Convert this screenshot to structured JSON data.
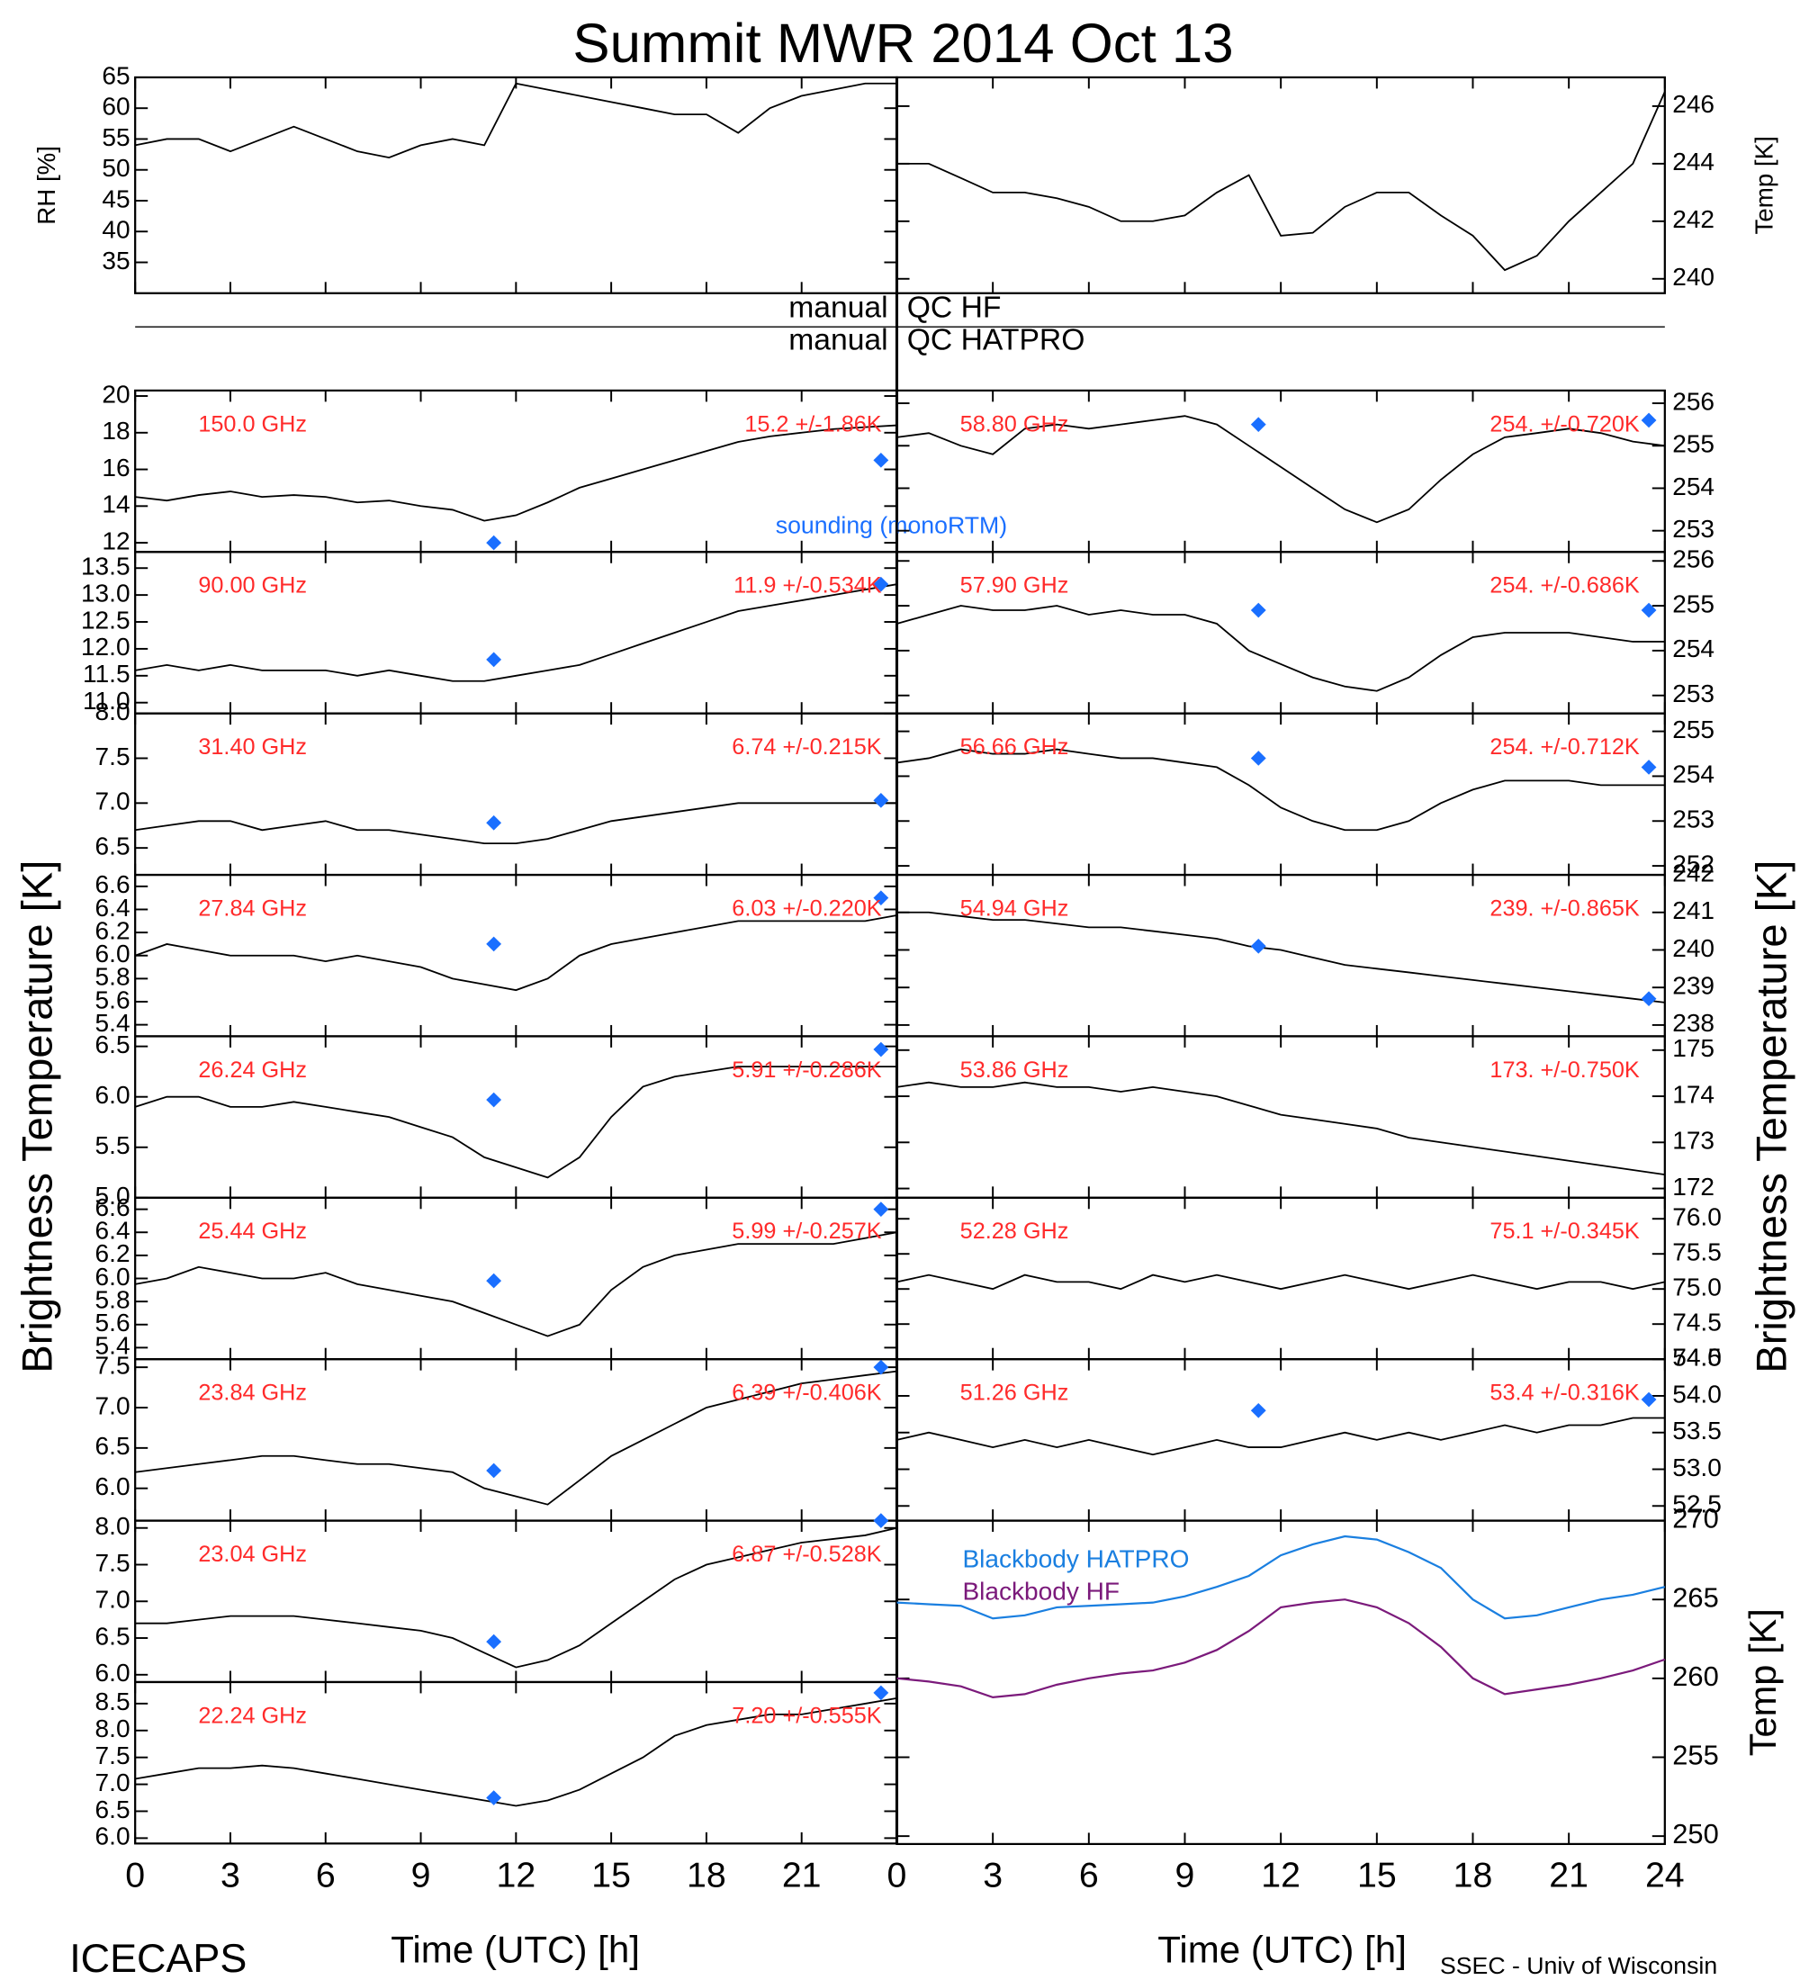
{
  "title": "Summit MWR 2014 Oct 13",
  "qc": [
    {
      "left": "manual",
      "right": "QC HF"
    },
    {
      "left": "manual",
      "right": "QC HATPRO"
    }
  ],
  "ylabel": "Brightness Temperature [K]",
  "sounding_label": "sounding (monoRTM)",
  "sounding_color": "#1a6fff",
  "label_color": "#ff2a2a",
  "footer_left": "ICECAPS",
  "footer_right": "SSEC - Univ of Wisconsin",
  "time_axis": {
    "xlabel": "Time (UTC) [h]",
    "xlim": [
      0,
      24
    ],
    "xticks": [
      0,
      3,
      6,
      9,
      12,
      15,
      18,
      21,
      24
    ],
    "x": [
      0,
      1,
      2,
      3,
      4,
      5,
      6,
      7,
      8,
      9,
      10,
      11,
      12,
      13,
      14,
      15,
      16,
      17,
      18,
      19,
      20,
      21,
      22,
      23,
      24
    ]
  },
  "chart_data": [
    {
      "type": "line",
      "ylabel": "RH [%]",
      "color": "#000000",
      "ylim": [
        30,
        65
      ],
      "yticks": [
        35,
        40,
        45,
        50,
        55,
        60,
        65
      ],
      "values": [
        54,
        55,
        55,
        53,
        55,
        57,
        55,
        53,
        52,
        54,
        55,
        54,
        64,
        63,
        62,
        61,
        60,
        59,
        59,
        56,
        60,
        62,
        63,
        64,
        64
      ]
    },
    {
      "type": "line",
      "ylabel": "Temp [K]",
      "color": "#000000",
      "ylim": [
        239.5,
        247
      ],
      "yticks": [
        240,
        242,
        244,
        246
      ],
      "values": [
        244,
        244,
        243.5,
        243,
        243,
        242.8,
        242.5,
        242,
        242,
        242.2,
        243,
        243.6,
        241.5,
        241.6,
        242.5,
        243,
        243,
        242.2,
        241.5,
        240.3,
        240.8,
        242,
        243,
        244,
        246.5
      ]
    },
    {
      "type": "line",
      "label": "150.0 GHz",
      "stats": "15.2 +/-1.86K",
      "color": "#000000",
      "ylim": [
        11.5,
        20.3
      ],
      "yticks": [
        12,
        14,
        16,
        18,
        20
      ],
      "values": [
        14.5,
        14.3,
        14.6,
        14.8,
        14.5,
        14.6,
        14.5,
        14.2,
        14.3,
        14,
        13.8,
        13.2,
        13.5,
        14.2,
        15,
        15.5,
        16,
        16.5,
        17,
        17.5,
        17.8,
        18,
        18.2,
        18.3,
        18.4
      ],
      "sounding": [
        [
          11.3,
          12
        ],
        [
          23.5,
          16.5
        ]
      ]
    },
    {
      "type": "line",
      "label": "90.00 GHz",
      "stats": "11.9 +/-0.534K",
      "color": "#000000",
      "ylim": [
        10.8,
        13.8
      ],
      "yticks": [
        {
          "value": 11,
          "label": "11.0"
        },
        11.5,
        {
          "value": 12,
          "label": "12.0"
        },
        12.5,
        {
          "value": 13,
          "label": "13.0"
        },
        13.5
      ],
      "values": [
        11.6,
        11.7,
        11.6,
        11.7,
        11.6,
        11.6,
        11.6,
        11.5,
        11.6,
        11.5,
        11.4,
        11.4,
        11.5,
        11.6,
        11.7,
        11.9,
        12.1,
        12.3,
        12.5,
        12.7,
        12.8,
        12.9,
        13,
        13.1,
        13.2
      ],
      "sounding": [
        [
          11.3,
          11.8
        ],
        [
          23.5,
          13.2
        ]
      ]
    },
    {
      "type": "line",
      "label": "31.40 GHz",
      "stats": "6.74 +/-0.215K",
      "color": "#000000",
      "ylim": [
        6.2,
        8
      ],
      "yticks": [
        6.5,
        {
          "value": 7,
          "label": "7.0"
        },
        7.5,
        {
          "value": 8,
          "label": "8.0"
        }
      ],
      "values": [
        6.7,
        6.75,
        6.8,
        6.8,
        6.7,
        6.75,
        6.8,
        6.7,
        6.7,
        6.65,
        6.6,
        6.55,
        6.55,
        6.6,
        6.7,
        6.8,
        6.85,
        6.9,
        6.95,
        7,
        7,
        7,
        7,
        7,
        7
      ],
      "sounding": [
        [
          11.3,
          6.78
        ],
        [
          23.5,
          7.03
        ]
      ]
    },
    {
      "type": "line",
      "label": "27.84 GHz",
      "stats": "6.03 +/-0.220K",
      "color": "#000000",
      "ylim": [
        5.3,
        6.7
      ],
      "yticks": [
        5.4,
        5.6,
        5.8,
        {
          "value": 6,
          "label": "6.0"
        },
        6.2,
        6.4,
        6.6
      ],
      "values": [
        6,
        6.1,
        6.05,
        6,
        6,
        6,
        5.95,
        6,
        5.95,
        5.9,
        5.8,
        5.75,
        5.7,
        5.8,
        6,
        6.1,
        6.15,
        6.2,
        6.25,
        6.3,
        6.3,
        6.3,
        6.3,
        6.3,
        6.35
      ],
      "sounding": [
        [
          11.3,
          6.1
        ],
        [
          23.5,
          6.5
        ]
      ]
    },
    {
      "type": "line",
      "label": "26.24 GHz",
      "stats": "5.91 +/-0.286K",
      "color": "#000000",
      "ylim": [
        5,
        6.6
      ],
      "yticks": [
        {
          "value": 5,
          "label": "5.0"
        },
        5.5,
        {
          "value": 6,
          "label": "6.0"
        },
        6.5
      ],
      "values": [
        5.9,
        6,
        6,
        5.9,
        5.9,
        5.95,
        5.9,
        5.85,
        5.8,
        5.7,
        5.6,
        5.4,
        5.3,
        5.2,
        5.4,
        5.8,
        6.1,
        6.2,
        6.25,
        6.3,
        6.3,
        6.3,
        6.3,
        6.3,
        6.3
      ],
      "sounding": [
        [
          11.3,
          5.97
        ],
        [
          23.5,
          6.47
        ]
      ]
    },
    {
      "type": "line",
      "label": "25.44 GHz",
      "stats": "5.99 +/-0.257K",
      "color": "#000000",
      "ylim": [
        5.3,
        6.7
      ],
      "yticks": [
        5.4,
        5.6,
        5.8,
        {
          "value": 6,
          "label": "6.0"
        },
        6.2,
        6.4,
        6.6
      ],
      "values": [
        5.95,
        6,
        6.1,
        6.05,
        6,
        6,
        6.05,
        5.95,
        5.9,
        5.85,
        5.8,
        5.7,
        5.6,
        5.5,
        5.6,
        5.9,
        6.1,
        6.2,
        6.25,
        6.3,
        6.3,
        6.3,
        6.3,
        6.35,
        6.4
      ],
      "sounding": [
        [
          11.3,
          5.98
        ],
        [
          23.5,
          6.6
        ]
      ]
    },
    {
      "type": "line",
      "label": "23.84 GHz",
      "stats": "6.39 +/-0.406K",
      "color": "#000000",
      "ylim": [
        5.6,
        7.6
      ],
      "yticks": [
        {
          "value": 6,
          "label": "6.0"
        },
        6.5,
        {
          "value": 7,
          "label": "7.0"
        },
        7.5
      ],
      "values": [
        6.2,
        6.25,
        6.3,
        6.35,
        6.4,
        6.4,
        6.35,
        6.3,
        6.3,
        6.25,
        6.2,
        6,
        5.9,
        5.8,
        6.1,
        6.4,
        6.6,
        6.8,
        7,
        7.1,
        7.2,
        7.3,
        7.35,
        7.4,
        7.45
      ],
      "sounding": [
        [
          11.3,
          6.22
        ],
        [
          23.5,
          7.5
        ]
      ]
    },
    {
      "type": "line",
      "label": "23.04 GHz",
      "stats": "6.87 +/-0.528K",
      "color": "#000000",
      "ylim": [
        5.9,
        8.1
      ],
      "yticks": [
        {
          "value": 6,
          "label": "6.0"
        },
        6.5,
        {
          "value": 7,
          "label": "7.0"
        },
        7.5,
        {
          "value": 8,
          "label": "8.0"
        }
      ],
      "values": [
        6.7,
        6.7,
        6.75,
        6.8,
        6.8,
        6.8,
        6.75,
        6.7,
        6.65,
        6.6,
        6.5,
        6.3,
        6.1,
        6.2,
        6.4,
        6.7,
        7,
        7.3,
        7.5,
        7.6,
        7.7,
        7.8,
        7.85,
        7.9,
        8
      ],
      "sounding": [
        [
          11.3,
          6.45
        ],
        [
          23.5,
          8.1
        ]
      ]
    },
    {
      "type": "line",
      "label": "22.24 GHz",
      "stats": "7.20 +/-0.555K",
      "color": "#000000",
      "ylim": [
        5.9,
        8.9
      ],
      "yticks": [
        {
          "value": 6,
          "label": "6.0"
        },
        6.5,
        {
          "value": 7,
          "label": "7.0"
        },
        7.5,
        {
          "value": 8,
          "label": "8.0"
        },
        8.5
      ],
      "values": [
        7.1,
        7.2,
        7.3,
        7.3,
        7.35,
        7.3,
        7.2,
        7.1,
        7,
        6.9,
        6.8,
        6.7,
        6.6,
        6.7,
        6.9,
        7.2,
        7.5,
        7.9,
        8.1,
        8.2,
        8.3,
        8.3,
        8.4,
        8.5,
        8.6
      ],
      "sounding": [
        [
          11.3,
          6.75
        ],
        [
          23.5,
          8.7
        ]
      ]
    },
    {
      "type": "line",
      "label": "58.80 GHz",
      "stats": "254. +/-0.720K",
      "color": "#000000",
      "ylim": [
        252.5,
        256.3
      ],
      "yticks": [
        253,
        254,
        255,
        256
      ],
      "values": [
        255.2,
        255.3,
        255,
        254.8,
        255.4,
        255.5,
        255.4,
        255.5,
        255.6,
        255.7,
        255.5,
        255,
        254.5,
        254,
        253.5,
        253.2,
        253.5,
        254.2,
        254.8,
        255.2,
        255.3,
        255.4,
        255.3,
        255.1,
        255
      ],
      "sounding": [
        [
          11.3,
          255.5
        ],
        [
          23.5,
          255.6
        ]
      ]
    },
    {
      "type": "line",
      "label": "57.90 GHz",
      "stats": "254. +/-0.686K",
      "color": "#000000",
      "ylim": [
        252.6,
        256.2
      ],
      "yticks": [
        253,
        254,
        255,
        256
      ],
      "values": [
        254.6,
        254.8,
        255,
        254.9,
        254.9,
        255,
        254.8,
        254.9,
        254.8,
        254.8,
        254.6,
        254,
        253.7,
        253.4,
        253.2,
        253.1,
        253.4,
        253.9,
        254.3,
        254.4,
        254.4,
        254.4,
        254.3,
        254.2,
        254.2
      ],
      "sounding": [
        [
          11.3,
          254.9
        ],
        [
          23.5,
          254.9
        ]
      ]
    },
    {
      "type": "line",
      "label": "56.66 GHz",
      "stats": "254. +/-0.712K",
      "color": "#000000",
      "ylim": [
        251.8,
        255.4
      ],
      "yticks": [
        252,
        253,
        254,
        255
      ],
      "values": [
        254.3,
        254.4,
        254.6,
        254.5,
        254.5,
        254.6,
        254.5,
        254.4,
        254.4,
        254.3,
        254.2,
        253.8,
        253.3,
        253,
        252.8,
        252.8,
        253,
        253.4,
        253.7,
        253.9,
        253.9,
        253.9,
        253.8,
        253.8,
        253.8
      ],
      "sounding": [
        [
          11.3,
          254.4
        ],
        [
          23.5,
          254.2
        ]
      ]
    },
    {
      "type": "line",
      "label": "54.94 GHz",
      "stats": "239. +/-0.865K",
      "color": "#000000",
      "ylim": [
        237.7,
        242
      ],
      "yticks": [
        238,
        239,
        240,
        241,
        242
      ],
      "values": [
        241,
        241,
        240.9,
        240.8,
        240.8,
        240.7,
        240.6,
        240.6,
        240.5,
        240.4,
        240.3,
        240.1,
        240,
        239.8,
        239.6,
        239.5,
        239.4,
        239.3,
        239.2,
        239.1,
        239,
        238.9,
        238.8,
        238.7,
        238.6
      ],
      "sounding": [
        [
          11.3,
          240.1
        ],
        [
          23.5,
          238.7
        ]
      ]
    },
    {
      "type": "line",
      "label": "53.86 GHz",
      "stats": "173. +/-0.750K",
      "color": "#000000",
      "ylim": [
        171.8,
        175.3
      ],
      "yticks": [
        172,
        173,
        174,
        175
      ],
      "values": [
        174.2,
        174.3,
        174.2,
        174.2,
        174.3,
        174.2,
        174.2,
        174.1,
        174.2,
        174.1,
        174,
        173.8,
        173.6,
        173.5,
        173.4,
        173.3,
        173.1,
        173,
        172.9,
        172.8,
        172.7,
        172.6,
        172.5,
        172.4,
        172.3
      ]
    },
    {
      "type": "line",
      "label": "52.28 GHz",
      "stats": "75.1 +/-0.345K",
      "color": "#000000",
      "ylim": [
        74,
        76.3
      ],
      "yticks": [
        {
          "value": 74,
          "label": "74.0"
        },
        74.5,
        {
          "value": 75,
          "label": "75.0"
        },
        75.5,
        {
          "value": 76,
          "label": "76.0"
        }
      ],
      "values": [
        75.1,
        75.2,
        75.1,
        75,
        75.2,
        75.1,
        75.1,
        75,
        75.2,
        75.1,
        75.2,
        75.1,
        75,
        75.1,
        75.2,
        75.1,
        75,
        75.1,
        75.2,
        75.1,
        75,
        75.1,
        75.1,
        75,
        75.1
      ]
    },
    {
      "type": "line",
      "label": "51.26 GHz",
      "stats": "53.4 +/-0.316K",
      "color": "#000000",
      "ylim": [
        52.3,
        54.5
      ],
      "yticks": [
        52.5,
        {
          "value": 53,
          "label": "53.0"
        },
        53.5,
        {
          "value": 54,
          "label": "54.0"
        },
        54.5
      ],
      "values": [
        53.4,
        53.5,
        53.4,
        53.3,
        53.4,
        53.3,
        53.4,
        53.3,
        53.2,
        53.3,
        53.4,
        53.3,
        53.3,
        53.4,
        53.5,
        53.4,
        53.5,
        53.4,
        53.5,
        53.6,
        53.5,
        53.6,
        53.6,
        53.7,
        53.7
      ],
      "sounding": [
        [
          11.3,
          53.8
        ],
        [
          23.5,
          53.95
        ]
      ]
    },
    {
      "type": "line",
      "ylabel": "Temp [K]",
      "ylim": [
        249.5,
        270
      ],
      "yticks": [
        250,
        255,
        260,
        265,
        270
      ],
      "series": [
        {
          "name": "Blackbody HATPRO",
          "color": "#1a7fe0",
          "values": [
            264.8,
            264.7,
            264.6,
            263.8,
            264,
            264.5,
            264.6,
            264.7,
            264.8,
            265.2,
            265.8,
            266.5,
            267.8,
            268.5,
            269,
            268.8,
            268,
            267,
            265,
            263.8,
            264,
            264.5,
            265,
            265.3,
            265.8
          ]
        },
        {
          "name": "Blackbody HF",
          "color": "#7b1a7b",
          "values": [
            260,
            259.8,
            259.5,
            258.8,
            259,
            259.6,
            260,
            260.3,
            260.5,
            261,
            261.8,
            263,
            264.5,
            264.8,
            265,
            264.5,
            263.5,
            262,
            260,
            259,
            259.3,
            259.6,
            260,
            260.5,
            261.2
          ]
        }
      ]
    }
  ]
}
